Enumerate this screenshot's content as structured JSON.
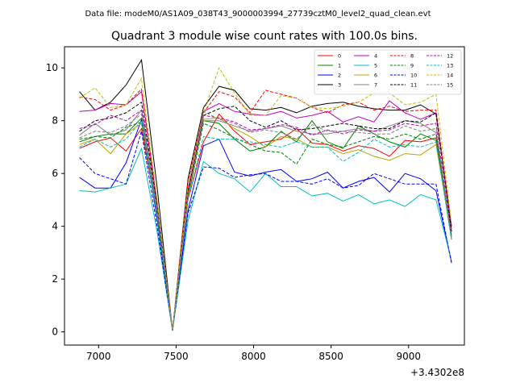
{
  "header": {
    "file_label": "Data file: modeM0/AS1A09_038T43_9000003994_27739cztM0_level2_quad_clean.evt"
  },
  "chart_data": {
    "type": "line",
    "title": "Quadrant 3 module wise count rates with 100.0s bins.",
    "xlabel": "",
    "ylabel": "",
    "x_offset_label": "+3.4302e8",
    "xlim": [
      6780,
      9360
    ],
    "ylim": [
      -0.5,
      10.8
    ],
    "xticks": [
      7000,
      7500,
      8000,
      8500,
      9000
    ],
    "xtick_labels": [
      "7000",
      "7500",
      "8000",
      "8500",
      "9000"
    ],
    "yticks": [
      0,
      2,
      4,
      6,
      8,
      10
    ],
    "ytick_labels": [
      "0",
      "2",
      "4",
      "6",
      "8",
      "10"
    ],
    "legend_position": "top-right",
    "x": [
      6877,
      6977,
      7077,
      7177,
      7277,
      7377,
      7477,
      7577,
      7677,
      7777,
      7877,
      7977,
      8077,
      8177,
      8277,
      8377,
      8477,
      8577,
      8677,
      8777,
      8877,
      8977,
      9077,
      9177,
      9277
    ],
    "series": [
      {
        "name": "0",
        "color": "#ff0000",
        "dash": "solid",
        "values": [
          6.95,
          7.2,
          7.35,
          6.85,
          7.7,
          4.5,
          0.05,
          5.0,
          7.2,
          8.25,
          7.6,
          7.1,
          7.2,
          7.3,
          7.7,
          7.15,
          7.1,
          6.85,
          7.05,
          6.95,
          6.65,
          7.25,
          7.2,
          7.35,
          3.8
        ]
      },
      {
        "name": "1",
        "color": "#008000",
        "dash": "solid",
        "values": [
          7.2,
          7.4,
          7.5,
          7.5,
          8.1,
          4.4,
          0.05,
          5.2,
          8.0,
          7.9,
          7.3,
          6.85,
          7.0,
          7.6,
          7.2,
          8.0,
          7.2,
          6.95,
          7.8,
          7.5,
          7.2,
          7.0,
          7.5,
          7.25,
          3.5
        ]
      },
      {
        "name": "2",
        "color": "#0000ff",
        "dash": "solid",
        "values": [
          5.85,
          5.45,
          5.45,
          6.4,
          8.05,
          4.3,
          0.05,
          4.6,
          7.05,
          7.3,
          6.05,
          5.9,
          6.05,
          6.15,
          5.7,
          5.8,
          6.05,
          5.45,
          5.7,
          5.85,
          5.3,
          6.0,
          5.8,
          5.35,
          2.65
        ]
      },
      {
        "name": "3",
        "color": "#000000",
        "dash": "solid",
        "values": [
          9.1,
          8.4,
          8.7,
          9.35,
          10.3,
          5.5,
          0.05,
          5.8,
          8.5,
          9.3,
          9.15,
          8.45,
          8.4,
          8.5,
          8.3,
          8.55,
          8.65,
          8.7,
          8.55,
          8.45,
          8.4,
          8.4,
          8.6,
          8.25,
          4.0
        ]
      },
      {
        "name": "4",
        "color": "#c000c0",
        "dash": "solid",
        "values": [
          8.35,
          8.4,
          8.65,
          8.6,
          9.1,
          4.9,
          0.05,
          5.4,
          8.35,
          8.65,
          8.35,
          8.25,
          8.2,
          8.35,
          8.1,
          8.2,
          8.35,
          7.95,
          8.15,
          7.95,
          8.75,
          8.3,
          8.05,
          8.3,
          3.9
        ]
      },
      {
        "name": "5",
        "color": "#00c0c0",
        "dash": "solid",
        "values": [
          5.35,
          5.3,
          5.45,
          5.6,
          6.95,
          3.8,
          0.05,
          4.2,
          6.45,
          6.0,
          5.8,
          5.3,
          6.0,
          5.5,
          5.5,
          5.15,
          5.25,
          4.95,
          5.2,
          4.85,
          5.0,
          4.75,
          5.2,
          5.0,
          2.7
        ]
      },
      {
        "name": "6",
        "color": "#c0a000",
        "dash": "solid",
        "values": [
          7.1,
          7.3,
          6.75,
          7.5,
          7.9,
          4.5,
          0.05,
          5.0,
          8.05,
          8.1,
          7.7,
          7.4,
          7.0,
          7.4,
          7.3,
          7.0,
          7.0,
          6.75,
          6.9,
          6.65,
          6.5,
          6.75,
          6.7,
          7.1,
          3.6
        ]
      },
      {
        "name": "7",
        "color": "#808080",
        "dash": "solid",
        "values": [
          7.45,
          7.9,
          7.45,
          7.65,
          8.4,
          4.6,
          0.05,
          5.3,
          8.0,
          8.0,
          7.8,
          7.6,
          7.7,
          7.8,
          7.6,
          7.5,
          7.5,
          7.6,
          7.7,
          7.6,
          7.8,
          8.0,
          7.9,
          7.55,
          3.7
        ]
      },
      {
        "name": "8",
        "color": "#ff0000",
        "dash": "dashed",
        "values": [
          8.9,
          8.8,
          8.4,
          8.6,
          9.2,
          4.9,
          0.05,
          5.7,
          8.3,
          9.1,
          8.9,
          8.3,
          9.15,
          9.0,
          8.85,
          8.5,
          8.3,
          8.6,
          8.7,
          8.4,
          8.55,
          8.35,
          8.4,
          8.4,
          4.0
        ]
      },
      {
        "name": "9",
        "color": "#008000",
        "dash": "dashed",
        "values": [
          7.3,
          7.4,
          7.35,
          7.75,
          7.95,
          4.4,
          0.05,
          5.1,
          7.9,
          7.65,
          7.35,
          7.1,
          6.85,
          6.8,
          6.35,
          7.3,
          7.1,
          7.0,
          7.2,
          7.4,
          7.3,
          7.5,
          7.3,
          7.5,
          3.6
        ]
      },
      {
        "name": "10",
        "color": "#0000ff",
        "dash": "dashed",
        "values": [
          6.6,
          6.0,
          5.8,
          5.6,
          7.6,
          4.0,
          0.05,
          4.5,
          6.25,
          6.2,
          5.85,
          5.95,
          6.0,
          5.7,
          5.7,
          5.6,
          5.8,
          5.45,
          5.55,
          6.0,
          5.8,
          5.6,
          5.6,
          5.6,
          2.6
        ]
      },
      {
        "name": "11",
        "color": "#000000",
        "dash": "dashed",
        "values": [
          7.6,
          8.0,
          8.1,
          8.3,
          8.7,
          4.8,
          0.05,
          5.3,
          8.2,
          8.45,
          8.55,
          8.0,
          7.75,
          8.0,
          7.65,
          7.7,
          7.8,
          7.9,
          7.8,
          7.7,
          7.7,
          8.0,
          7.95,
          8.3,
          3.8
        ]
      },
      {
        "name": "12",
        "color": "#c000c0",
        "dash": "dashed",
        "values": [
          7.7,
          7.85,
          8.2,
          8.0,
          8.4,
          4.7,
          0.05,
          5.2,
          8.2,
          8.1,
          7.95,
          7.65,
          7.7,
          7.85,
          7.75,
          7.45,
          7.65,
          7.5,
          7.65,
          7.6,
          7.65,
          7.9,
          7.8,
          7.9,
          3.6
        ]
      },
      {
        "name": "13",
        "color": "#00c0c0",
        "dash": "dashed",
        "values": [
          7.0,
          7.3,
          7.0,
          7.3,
          8.0,
          4.5,
          0.05,
          5.0,
          7.4,
          7.3,
          7.3,
          7.2,
          7.1,
          7.0,
          7.2,
          7.0,
          7.0,
          6.45,
          6.8,
          7.3,
          7.0,
          7.1,
          7.0,
          7.2,
          3.5
        ]
      },
      {
        "name": "14",
        "color": "#c0c000",
        "dash": "dashed",
        "values": [
          8.85,
          9.25,
          8.5,
          8.6,
          9.6,
          5.0,
          0.05,
          5.5,
          8.3,
          10.0,
          9.05,
          8.2,
          8.2,
          8.95,
          8.85,
          8.5,
          8.45,
          8.55,
          8.7,
          9.05,
          9.05,
          8.6,
          8.7,
          9.0,
          4.1
        ]
      },
      {
        "name": "15",
        "color": "#808080",
        "dash": "dashed",
        "values": [
          7.35,
          7.6,
          7.55,
          7.8,
          8.25,
          4.6,
          0.05,
          5.1,
          8.35,
          8.05,
          7.9,
          7.55,
          7.65,
          7.55,
          7.3,
          7.85,
          7.6,
          7.6,
          7.55,
          7.5,
          7.5,
          7.8,
          7.6,
          7.7,
          3.6
        ]
      }
    ]
  }
}
